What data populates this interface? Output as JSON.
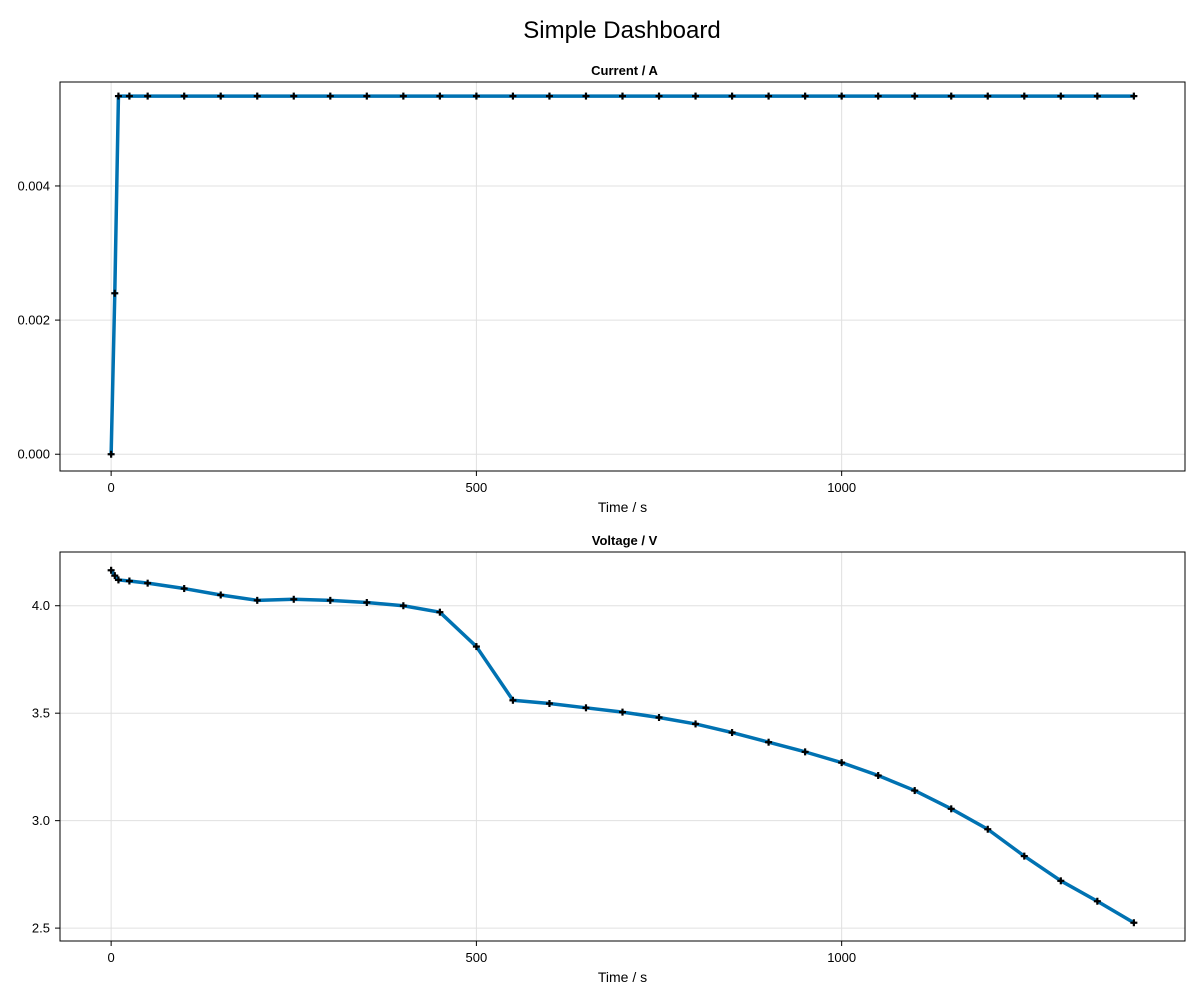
{
  "title": "Simple Dashboard",
  "colors": {
    "series": "#0072b2",
    "marker": "#000000",
    "grid": "#e0e0e0"
  },
  "chart_data": [
    {
      "type": "line",
      "title": "Current  /  A",
      "xlabel": "Time  /  s",
      "ylabel": "",
      "xlim": [
        -70,
        1470
      ],
      "ylim": [
        -0.00025,
        0.00555
      ],
      "xticks": [
        0,
        500,
        1000
      ],
      "yticks": [
        0.0,
        0.002,
        0.004
      ],
      "ytick_labels": [
        "0.000",
        "0.002",
        "0.004"
      ],
      "grid": true,
      "marker": "plus",
      "series": [
        {
          "x": [
            0,
            5,
            10,
            25,
            50,
            100,
            150,
            200,
            250,
            300,
            350,
            400,
            450,
            500,
            550,
            600,
            650,
            700,
            750,
            800,
            850,
            900,
            950,
            1000,
            1050,
            1100,
            1150,
            1200,
            1250,
            1300,
            1350,
            1400
          ],
          "y": [
            0.0,
            0.0024,
            0.00534,
            0.00534,
            0.00534,
            0.00534,
            0.00534,
            0.00534,
            0.00534,
            0.00534,
            0.00534,
            0.00534,
            0.00534,
            0.00534,
            0.00534,
            0.00534,
            0.00534,
            0.00534,
            0.00534,
            0.00534,
            0.00534,
            0.00534,
            0.00534,
            0.00534,
            0.00534,
            0.00534,
            0.00534,
            0.00534,
            0.00534,
            0.00534,
            0.00534,
            0.00534
          ]
        }
      ]
    },
    {
      "type": "line",
      "title": "Voltage  /  V",
      "xlabel": "Time  /  s",
      "ylabel": "",
      "xlim": [
        -70,
        1470
      ],
      "ylim": [
        2.44,
        4.25
      ],
      "xticks": [
        0,
        500,
        1000
      ],
      "yticks": [
        2.5,
        3.0,
        3.5,
        4.0
      ],
      "ytick_labels": [
        "2.5",
        "3.0",
        "3.5",
        "4.0"
      ],
      "grid": true,
      "marker": "plus",
      "series": [
        {
          "x": [
            0,
            5,
            10,
            25,
            50,
            100,
            150,
            200,
            250,
            300,
            350,
            400,
            450,
            500,
            550,
            600,
            650,
            700,
            750,
            800,
            850,
            900,
            950,
            1000,
            1050,
            1100,
            1150,
            1200,
            1250,
            1300,
            1350,
            1400
          ],
          "y": [
            4.165,
            4.14,
            4.12,
            4.115,
            4.105,
            4.08,
            4.05,
            4.025,
            4.03,
            4.025,
            4.015,
            4.0,
            3.97,
            3.81,
            3.56,
            3.545,
            3.525,
            3.505,
            3.48,
            3.45,
            3.41,
            3.365,
            3.32,
            3.27,
            3.21,
            3.14,
            3.055,
            2.96,
            2.835,
            2.72,
            2.625,
            2.525
          ]
        }
      ]
    }
  ]
}
